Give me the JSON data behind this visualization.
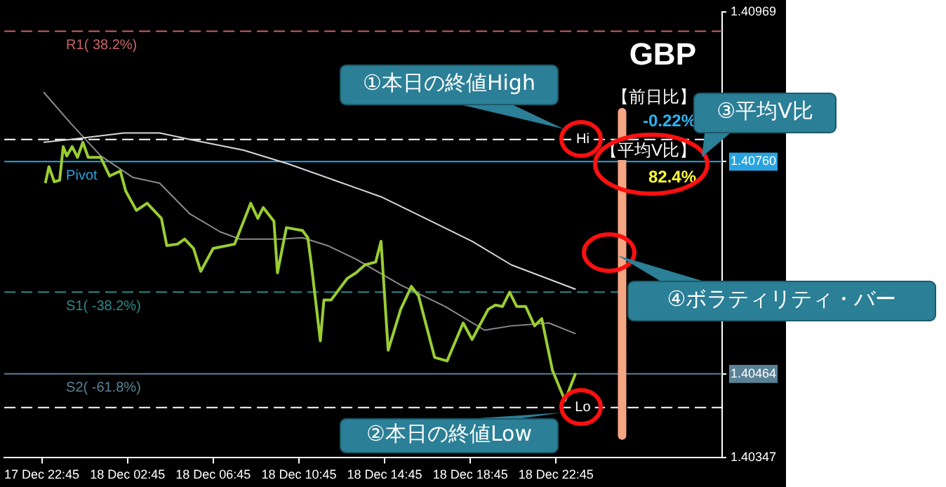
{
  "chart_data": {
    "type": "line",
    "title": "GBP",
    "xlim": [
      "--12-17T21:00",
      "--12-19T06:30"
    ],
    "xticks": [
      {
        "value": "--12-17T22:45",
        "label": "17 Dec 22:45"
      },
      {
        "value": "--12-18T02:45",
        "label": "18 Dec 02:45"
      },
      {
        "value": "--12-18T06:45",
        "label": "18 Dec 06:45"
      },
      {
        "value": "--12-18T10:45",
        "label": "18 Dec 10:45"
      },
      {
        "value": "--12-18T14:45",
        "label": "18 Dec 14:45"
      },
      {
        "value": "--12-18T18:45",
        "label": "18 Dec 18:45"
      },
      {
        "value": "--12-18T22:45",
        "label": "18 Dec 22:45"
      }
    ],
    "ylim": [
      1.40347,
      1.40969
    ],
    "yticks": [
      1.40347,
      1.40464,
      {
        "value": 1.4076,
        "label": "1.40760"
      },
      1.40969
    ],
    "series": [
      {
        "color": "#9acd32",
        "x": [
          "--12-17T22:55",
          "--12-17T23:05",
          "--12-17T23:20",
          "--12-17T23:35",
          "--12-17T23:45",
          "--12-17T23:55",
          "--12-18T00:10",
          "--12-18T00:25",
          "--12-18T00:40",
          "--12-18T00:55",
          "--12-18T01:30",
          "--12-18T01:55",
          "--12-18T02:25",
          "--12-18T02:40",
          "--12-18T03:10",
          "--12-18T03:40",
          "--12-18T04:20",
          "--12-18T04:35",
          "--12-18T05:05",
          "--12-18T05:25",
          "--12-18T05:50",
          "--12-18T06:10",
          "--12-18T06:45",
          "--12-18T07:45",
          "--12-18T08:30",
          "--12-18T08:50",
          "--12-18T09:05",
          "--12-18T09:35",
          "--12-18T09:45",
          "--12-18T10:10",
          "--12-18T10:55",
          "--12-18T11:10",
          "--12-18T11:20",
          "--12-18T11:45",
          "--12-18T11:55",
          "--12-18T12:15",
          "--12-18T13:00",
          "--12-18T13:25",
          "--12-18T13:50",
          "--12-18T14:20",
          "--12-18T14:35",
          "--12-18T14:55",
          "--12-18T15:30",
          "--12-18T16:00",
          "--12-18T16:20",
          "--12-18T17:05",
          "--12-18T17:40",
          "--12-18T18:25",
          "--12-18T18:50",
          "--12-18T19:35",
          "--12-18T19:55",
          "--12-18T20:15",
          "--12-18T20:35",
          "--12-18T20:55",
          "--12-18T21:20",
          "--12-18T21:45",
          "--12-18T22:05",
          "--12-18T22:35",
          "--12-18T23:10",
          "--12-18T23:40"
        ],
        "values": [
          1.4073,
          1.40753,
          1.40732,
          1.40734,
          1.40781,
          1.40768,
          1.40781,
          1.40766,
          1.40787,
          1.40766,
          1.40766,
          1.4074,
          1.40747,
          1.40719,
          1.40692,
          1.40702,
          1.40681,
          1.40643,
          1.40645,
          1.40652,
          1.40639,
          1.40607,
          1.40639,
          1.40645,
          1.40702,
          1.40681,
          1.40696,
          1.40677,
          1.40605,
          1.40668,
          1.40664,
          1.40654,
          1.40616,
          1.4051,
          1.40567,
          1.40567,
          1.40597,
          1.40605,
          1.40616,
          1.4062,
          1.40649,
          1.40497,
          1.40554,
          1.40586,
          1.40573,
          1.40487,
          1.40482,
          1.40535,
          1.40512,
          1.40554,
          1.4056,
          1.40558,
          1.40578,
          1.40558,
          1.40558,
          1.40531,
          1.40541,
          1.40469,
          1.40427,
          1.40465
        ]
      },
      {
        "color": "#d8d8d8",
        "x": [
          "--12-17T22:50",
          "--12-18T00:05",
          "--12-18T02:35",
          "--12-18T04:15",
          "--12-18T05:40",
          "--12-18T08:10",
          "--12-18T10:15",
          "--12-18T12:25",
          "--12-18T14:35",
          "--12-18T16:55",
          "--12-18T18:50",
          "--12-18T20:40",
          "--12-18T23:40"
        ],
        "values": [
          1.40787,
          1.40791,
          1.408,
          1.408,
          1.40791,
          1.40776,
          1.40757,
          1.40734,
          1.40711,
          1.40677,
          1.40649,
          1.40616,
          1.40582
        ]
      },
      {
        "color": "#8a8a8a",
        "x": [
          "--12-17T22:50",
          "--12-18T00:05",
          "--12-18T01:30",
          "--12-18T03:00",
          "--12-18T04:15",
          "--12-18T05:40",
          "--12-18T07:05",
          "--12-18T08:00",
          "--12-18T09:55",
          "--12-18T10:55",
          "--12-18T12:05",
          "--12-18T13:25",
          "--12-18T15:30",
          "--12-18T17:35",
          "--12-18T19:25",
          "--12-18T20:40",
          "--12-18T22:25",
          "--12-18T23:40"
        ],
        "values": [
          1.40857,
          1.40814,
          1.40768,
          1.40738,
          1.4073,
          1.40687,
          1.40662,
          1.40652,
          1.40652,
          1.40654,
          1.40643,
          1.40624,
          1.40588,
          1.40558,
          1.40525,
          1.40531,
          1.40535,
          1.4052
        ]
      },
      {
        "color": "#f4a582",
        "x": [
          "--12-19T01:50",
          "--12-19T01:50"
        ],
        "values": [
          1.40829,
          1.40378
        ]
      }
    ],
    "ref_lines": [
      {
        "axis": "y",
        "value": 1.40942,
        "label": "R1( 38.2%)",
        "color": "#c86464",
        "line_style": "dashed"
      },
      {
        "axis": "y",
        "value": 1.40791,
        "color": "#ffffff",
        "line_style": "dashed"
      },
      {
        "axis": "y",
        "value": 1.4076,
        "label": "Pivot",
        "color": "#29a3e0",
        "line_style": "solid"
      },
      {
        "axis": "y",
        "value": 1.40578,
        "label": "S1( -38.2%)",
        "color": "#2a8a8a",
        "line_style": "dashed"
      },
      {
        "axis": "y",
        "value": 1.40464,
        "label": "S2( -61.8%)",
        "color": "#5a8296",
        "line_style": "solid"
      },
      {
        "axis": "y",
        "value": 1.40417,
        "color": "#ffffff",
        "line_style": "dashed"
      }
    ],
    "annotations": [
      "①本日の終値High",
      "②本日の終値Low",
      "③平均V比",
      "④ボラティリティ・バー",
      "【前日比】",
      "-0.22%",
      "【平均V比】",
      "82.4%",
      {
        "text": "Hi",
        "x": "--12-19T00:00",
        "y": 1.40791
      },
      {
        "text": "Lo",
        "x": "--12-19T00:00",
        "y": 1.40417
      }
    ]
  }
}
